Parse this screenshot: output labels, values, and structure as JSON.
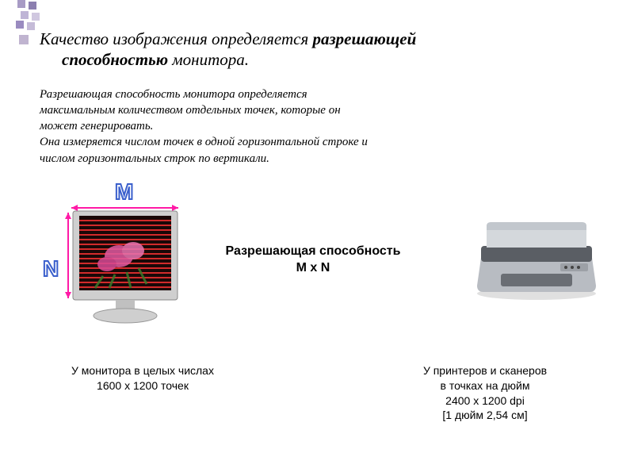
{
  "deco": {
    "colors": [
      "#a89bc5",
      "#8c7fb0",
      "#bfb5d6",
      "#d0c8e0",
      "#9a8bc0",
      "#c5bbd8"
    ],
    "positions": [
      [
        4,
        0
      ],
      [
        18,
        2
      ],
      [
        8,
        14
      ],
      [
        22,
        16
      ],
      [
        2,
        26
      ],
      [
        16,
        28
      ]
    ]
  },
  "title": {
    "line1_plain": "Качество изображения определяется ",
    "line1_bold": "разрешающей",
    "line2_bold": "способностью",
    "line2_plain": " монитора."
  },
  "desc": {
    "p1": "Разрешающая способность монитора определяется максимальным количеством отдельных точек, которые он может генерировать.",
    "p2": "Она измеряется числом точек в одной горизонтальной строке и числом горизонтальных строк по вертикали."
  },
  "labels": {
    "M": "M",
    "N": "N"
  },
  "resolution": {
    "line1": "Разрешающая способность",
    "line2": "M x N"
  },
  "captions": {
    "monitor_l1": "У монитора в целых числах",
    "monitor_l2": "1600 x 1200 точек",
    "printer_l1": "У принтеров и сканеров",
    "printer_l2": "в точках на дюйм",
    "printer_l3": "2400 x 1200 dpi",
    "printer_l4": "[1 дюйм   2,54 см]"
  },
  "colors": {
    "monitor_bezel": "#cfcfcf",
    "monitor_screen": "#1a0808",
    "monitor_lines": "#d22b2b",
    "flower_pink": "#e05aa0",
    "flower_green": "#3a7a2a",
    "arrow": "#ff1aa6",
    "printer_body": "#b8bcc2",
    "printer_dark": "#5a5e64",
    "printer_cover": "#d4d8dc"
  }
}
